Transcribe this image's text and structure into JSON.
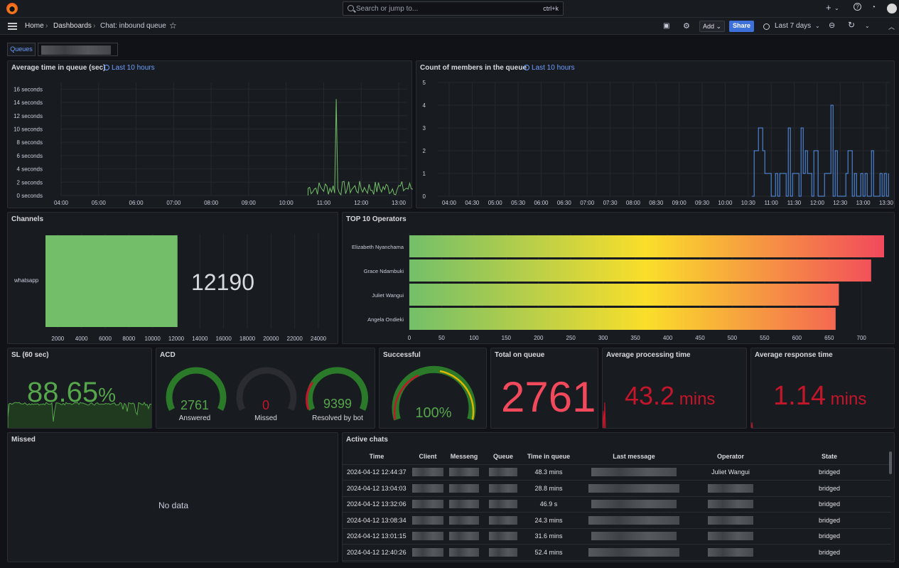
{
  "topbar": {
    "search_placeholder": "Search or jump to...",
    "search_shortcut": "ctrl+k",
    "plus_label": "+",
    "help_icon": "?"
  },
  "nav": {
    "breadcrumb": [
      "Home",
      "Dashboards",
      "Chat: inbound queue"
    ],
    "add_label": "Add",
    "share_label": "Share",
    "time_range": "Last 7 days"
  },
  "variables": {
    "queues_label": "Queues"
  },
  "panels": {
    "avg_time": {
      "title": "Average time in queue (sec)",
      "time_override": "Last 10 hours"
    },
    "count_members": {
      "title": "Count of members in the queue",
      "time_override": "Last 10 hours"
    },
    "channels": {
      "title": "Channels",
      "value_label": "12190"
    },
    "top10": {
      "title": "TOP 10 Operators"
    },
    "sl": {
      "title": "SL (60 sec)",
      "value": "88.65",
      "unit": "%"
    },
    "acd": {
      "title": "ACD",
      "gauges": [
        {
          "value": "2761",
          "label": "Answered"
        },
        {
          "value": "0",
          "label": "Missed"
        },
        {
          "value": "9399",
          "label": "Resolved by bot"
        }
      ]
    },
    "successful": {
      "title": "Successful",
      "value": "100%"
    },
    "total_on_queue": {
      "title": "Total on queue",
      "value": "2761"
    },
    "avg_processing": {
      "title": "Average processing time",
      "value": "43.2",
      "unit": "mins"
    },
    "avg_response": {
      "title": "Average response time",
      "value": "1.14",
      "unit": "mins"
    },
    "missed": {
      "title": "Missed",
      "no_data": "No data"
    },
    "active_chats": {
      "title": "Active chats",
      "columns": [
        "Time",
        "Client",
        "Messeng",
        "Queue",
        "Time in queue",
        "Last message",
        "Operator",
        "State"
      ],
      "rows": [
        {
          "time": "2024-04-12 12:44:37",
          "tiq": "48.3 mins",
          "operator": "Juliet Wangui",
          "state": "bridged"
        },
        {
          "time": "2024-04-12 13:04:03",
          "tiq": "28.8 mins",
          "operator": "",
          "state": "bridged"
        },
        {
          "time": "2024-04-12 13:32:06",
          "tiq": "46.9 s",
          "operator": "",
          "state": "bridged"
        },
        {
          "time": "2024-04-12 13:08:34",
          "tiq": "24.3 mins",
          "operator": "",
          "state": "bridged"
        },
        {
          "time": "2024-04-12 13:01:15",
          "tiq": "31.6 mins",
          "operator": "",
          "state": "bridged"
        },
        {
          "time": "2024-04-12 12:40:26",
          "tiq": "52.4 mins",
          "operator": "",
          "state": "bridged"
        }
      ]
    }
  },
  "chart_data": [
    {
      "type": "line",
      "title": "Average time in queue (sec)",
      "x_ticks": [
        "04:00",
        "05:00",
        "06:00",
        "07:00",
        "08:00",
        "09:00",
        "10:00",
        "11:00",
        "12:00",
        "13:00"
      ],
      "y_ticks": [
        "0 seconds",
        "2 seconds",
        "4 seconds",
        "6 seconds",
        "8 seconds",
        "10 seconds",
        "12 seconds",
        "14 seconds",
        "16 seconds"
      ],
      "ylim": [
        0,
        17
      ],
      "color": "#73bf69",
      "series": [
        {
          "x_start": "10:35",
          "x_end": "13:35",
          "spike_time": "11:20",
          "spike_value": 14.5,
          "baseline_max": 2.2
        }
      ]
    },
    {
      "type": "line",
      "title": "Count of members in the queue",
      "x_ticks": [
        "04:00",
        "04:30",
        "05:00",
        "05:30",
        "06:00",
        "06:30",
        "07:00",
        "07:30",
        "08:00",
        "08:30",
        "09:00",
        "09:30",
        "10:00",
        "10:30",
        "11:00",
        "11:30",
        "12:00",
        "12:30",
        "13:00",
        "13:30"
      ],
      "y_ticks": [
        "0",
        "1",
        "2",
        "3",
        "4",
        "5"
      ],
      "ylim": [
        0,
        5
      ],
      "color": "#5794f2",
      "series": [
        {
          "x_start": "10:35",
          "x_end": "13:35",
          "max_value": 4
        }
      ]
    },
    {
      "type": "bar",
      "title": "Channels",
      "categories": [
        "whatsapp"
      ],
      "values": [
        12190
      ],
      "x_ticks": [
        "2000",
        "4000",
        "6000",
        "8000",
        "10000",
        "12000",
        "14000",
        "16000",
        "18000",
        "20000",
        "22000",
        "24000"
      ],
      "xlim": [
        0,
        25000
      ],
      "color": "#73bf69"
    },
    {
      "type": "bar",
      "title": "TOP 10 Operators",
      "categories": [
        "Elizabeth Nyanchama",
        "Grace Ndambuki",
        "Juliet Wangui",
        "Angela Ondieki"
      ],
      "values": [
        735,
        715,
        665,
        660
      ],
      "x_ticks": [
        "0",
        "50",
        "100",
        "150",
        "200",
        "250",
        "300",
        "350",
        "400",
        "450",
        "500",
        "550",
        "600",
        "650",
        "700"
      ],
      "xlim": [
        0,
        735
      ],
      "gradient": [
        "#73bf69",
        "#fade2a",
        "#f2495c"
      ]
    }
  ]
}
